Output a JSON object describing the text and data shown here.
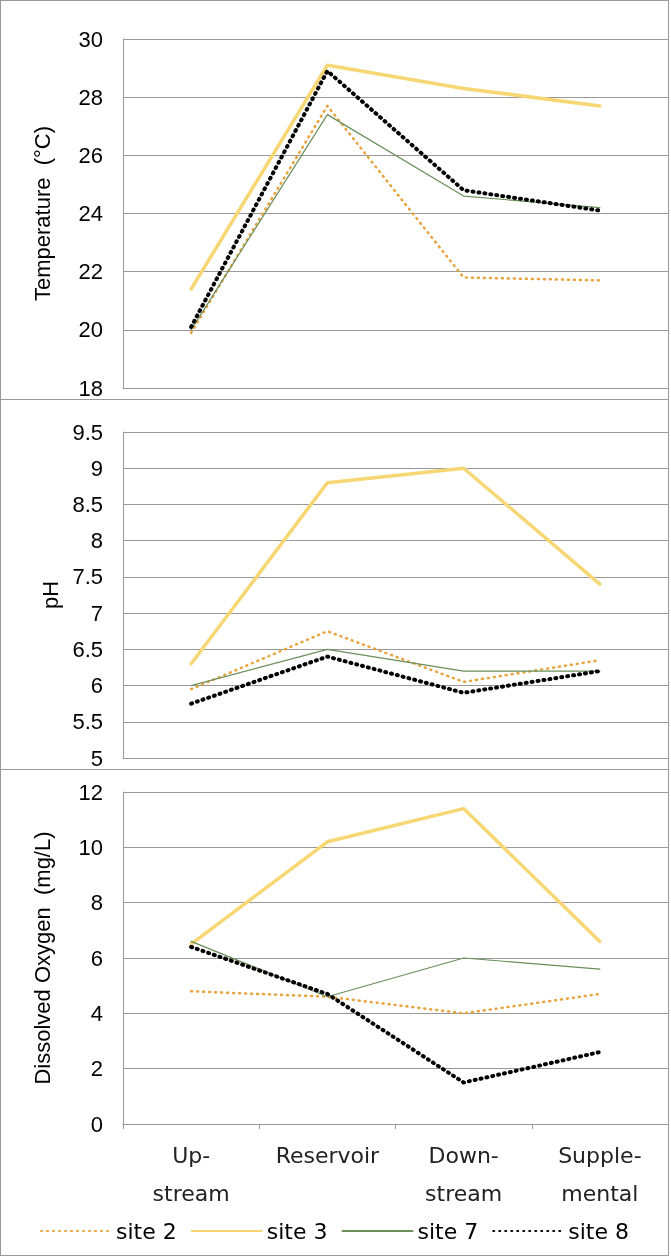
{
  "chart_data": [
    {
      "type": "line",
      "ylabel": "Temperature  (°C)",
      "categories": [
        null,
        null,
        null,
        null
      ],
      "ylim": [
        18,
        30
      ],
      "yticks": [
        18,
        20,
        22,
        24,
        26,
        28,
        30
      ],
      "grid": "y",
      "legend": false,
      "tick_labels": "y",
      "marker": "none",
      "series": [
        {
          "color": "#e8a33c",
          "line_style": "dotted",
          "values": [
            19.9,
            27.7,
            21.8,
            21.7
          ]
        },
        {
          "color": "#f7d774",
          "line_style": "solid",
          "values": [
            21.4,
            29.1,
            28.3,
            27.7
          ]
        },
        {
          "color": "#6a8f5a",
          "line_style": "solid",
          "values": [
            20.0,
            27.4,
            24.6,
            24.2
          ]
        },
        {
          "color": "#000000",
          "line_style": "dotted",
          "values": [
            20.1,
            28.9,
            24.8,
            24.1
          ]
        }
      ]
    },
    {
      "type": "line",
      "ylabel": "pH",
      "categories": [
        null,
        null,
        null,
        null
      ],
      "ylim": [
        5,
        9.5
      ],
      "yticks": [
        5,
        5.5,
        6,
        6.5,
        7,
        7.5,
        8,
        8.5,
        9,
        9.5
      ],
      "grid": "y",
      "legend": false,
      "tick_labels": "y",
      "marker": "none",
      "series": [
        {
          "color": "#e8a33c",
          "line_style": "dotted",
          "values": [
            5.95,
            6.75,
            6.05,
            6.35
          ]
        },
        {
          "color": "#f7d774",
          "line_style": "solid",
          "values": [
            6.3,
            8.8,
            9.0,
            7.4
          ]
        },
        {
          "color": "#6a8f5a",
          "line_style": "solid",
          "values": [
            6.0,
            6.5,
            6.2,
            6.2
          ]
        },
        {
          "color": "#000000",
          "line_style": "dotted",
          "values": [
            5.75,
            6.4,
            5.9,
            6.2
          ]
        }
      ]
    },
    {
      "type": "line",
      "ylabel": "Dissolved Oxygen  (mg/L)",
      "categories": [
        "Up-\nstream",
        "Reservoir",
        "Down-\nstream",
        "Supple-\nmental"
      ],
      "ylim": [
        0,
        12
      ],
      "yticks": [
        0,
        2,
        4,
        6,
        8,
        10,
        12
      ],
      "grid": "y",
      "legend": "bottom",
      "marker": "none",
      "series": [
        {
          "name": "site 2",
          "color": "#e8a33c",
          "line_style": "dotted",
          "values": [
            4.8,
            4.6,
            4.0,
            4.7
          ]
        },
        {
          "name": "site 3",
          "color": "#f7d774",
          "line_style": "solid",
          "values": [
            6.5,
            10.2,
            11.4,
            6.6
          ]
        },
        {
          "name": "site 7",
          "color": "#6a8f5a",
          "line_style": "solid",
          "values": [
            6.6,
            4.6,
            6.0,
            5.6
          ]
        },
        {
          "name": "site 8",
          "color": "#000000",
          "line_style": "dotted",
          "values": [
            6.4,
            4.7,
            1.5,
            2.6
          ]
        }
      ]
    }
  ]
}
